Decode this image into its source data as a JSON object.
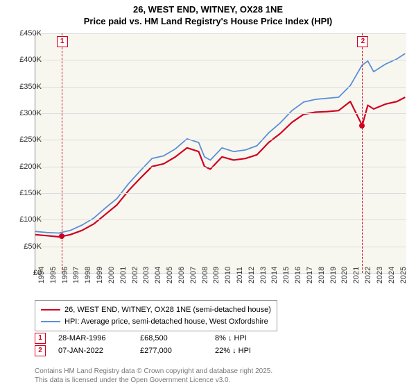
{
  "title": {
    "line1": "26, WEST END, WITNEY, OX28 1NE",
    "line2": "Price paid vs. HM Land Registry's House Price Index (HPI)",
    "fontsize": 13,
    "color": "#000000"
  },
  "chart": {
    "type": "line",
    "background_color": "#f7f7f0",
    "grid_color": "#dcdcdc",
    "axis_color": "#888888",
    "x_years": [
      "1994",
      "1995",
      "1996",
      "1997",
      "1998",
      "1999",
      "2000",
      "2001",
      "2002",
      "2003",
      "2004",
      "2005",
      "2006",
      "2007",
      "2008",
      "2009",
      "2010",
      "2011",
      "2012",
      "2013",
      "2014",
      "2015",
      "2016",
      "2017",
      "2018",
      "2019",
      "2020",
      "2021",
      "2022",
      "2023",
      "2024",
      "2025"
    ],
    "y_ticks": [
      0,
      50,
      100,
      150,
      200,
      250,
      300,
      350,
      400,
      450
    ],
    "y_label_prefix": "£",
    "y_label_suffix": "K",
    "ylim": [
      0,
      450
    ],
    "xlim": [
      1994,
      2025.8
    ],
    "series": [
      {
        "name": "price_paid",
        "label": "26, WEST END, WITNEY, OX28 1NE (semi-detached house)",
        "color": "#d00020",
        "width": 2.2,
        "points": [
          [
            1994,
            72
          ],
          [
            1995,
            70
          ],
          [
            1996,
            68
          ],
          [
            1996.24,
            68.5
          ],
          [
            1997,
            72
          ],
          [
            1998,
            80
          ],
          [
            1999,
            92
          ],
          [
            2000,
            110
          ],
          [
            2001,
            128
          ],
          [
            2002,
            155
          ],
          [
            2003,
            178
          ],
          [
            2004,
            200
          ],
          [
            2005,
            205
          ],
          [
            2006,
            218
          ],
          [
            2007,
            235
          ],
          [
            2008,
            228
          ],
          [
            2008.5,
            200
          ],
          [
            2009,
            195
          ],
          [
            2010,
            218
          ],
          [
            2011,
            212
          ],
          [
            2012,
            215
          ],
          [
            2013,
            222
          ],
          [
            2014,
            245
          ],
          [
            2015,
            262
          ],
          [
            2016,
            283
          ],
          [
            2017,
            298
          ],
          [
            2018,
            302
          ],
          [
            2019,
            303
          ],
          [
            2020,
            305
          ],
          [
            2021,
            322
          ],
          [
            2022.02,
            277
          ],
          [
            2022.5,
            315
          ],
          [
            2023,
            308
          ],
          [
            2024,
            317
          ],
          [
            2025,
            322
          ],
          [
            2025.7,
            330
          ]
        ]
      },
      {
        "name": "hpi",
        "label": "HPI: Average price, semi-detached house, West Oxfordshire",
        "color": "#5b8fd6",
        "width": 1.8,
        "points": [
          [
            1994,
            78
          ],
          [
            1995,
            76
          ],
          [
            1996,
            75
          ],
          [
            1997,
            80
          ],
          [
            1998,
            90
          ],
          [
            1999,
            103
          ],
          [
            2000,
            122
          ],
          [
            2001,
            140
          ],
          [
            2002,
            168
          ],
          [
            2003,
            192
          ],
          [
            2004,
            215
          ],
          [
            2005,
            220
          ],
          [
            2006,
            233
          ],
          [
            2007,
            252
          ],
          [
            2008,
            245
          ],
          [
            2008.5,
            218
          ],
          [
            2009,
            212
          ],
          [
            2010,
            235
          ],
          [
            2011,
            228
          ],
          [
            2012,
            231
          ],
          [
            2013,
            239
          ],
          [
            2014,
            263
          ],
          [
            2015,
            282
          ],
          [
            2016,
            305
          ],
          [
            2017,
            321
          ],
          [
            2018,
            326
          ],
          [
            2019,
            328
          ],
          [
            2020,
            330
          ],
          [
            2021,
            352
          ],
          [
            2022,
            390
          ],
          [
            2022.5,
            398
          ],
          [
            2023,
            378
          ],
          [
            2024,
            392
          ],
          [
            2025,
            402
          ],
          [
            2025.7,
            412
          ]
        ]
      }
    ],
    "markers": [
      {
        "id": "1",
        "x": 1996.24,
        "y": 68.5,
        "box_top": true
      },
      {
        "id": "2",
        "x": 2022.02,
        "y": 277,
        "box_top": true
      }
    ],
    "label_fontsize": 11
  },
  "legend": {
    "items": [
      {
        "color": "#d00020",
        "label": "26, WEST END, WITNEY, OX28 1NE (semi-detached house)"
      },
      {
        "color": "#5b8fd6",
        "label": "HPI: Average price, semi-detached house, West Oxfordshire"
      }
    ],
    "border_color": "#999999",
    "fontsize": 11
  },
  "sales_table": {
    "rows": [
      {
        "id": "1",
        "date": "28-MAR-1996",
        "price": "£68,500",
        "pct": "8% ↓ HPI"
      },
      {
        "id": "2",
        "date": "07-JAN-2022",
        "price": "£277,000",
        "pct": "22% ↓ HPI"
      }
    ],
    "fontsize": 11
  },
  "footer": {
    "line1": "Contains HM Land Registry data © Crown copyright and database right 2025.",
    "line2": "This data is licensed under the Open Government Licence v3.0.",
    "color": "#777777",
    "fontsize": 10
  }
}
